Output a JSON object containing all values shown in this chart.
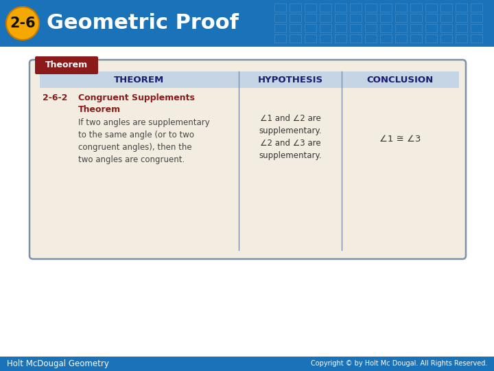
{
  "title": "Geometric Proof",
  "badge_text": "2-6",
  "bg_color": "#ffffff",
  "header_bg": "#1a72b8",
  "badge_bg": "#f5a800",
  "badge_outline": "#c87800",
  "theorem_label_bg": "#8b1a1a",
  "theorem_label_text": "Theorem",
  "table_outer_bg": "#f2ede0",
  "table_header_bg": "#c5d5e5",
  "table_border_color": "#7a90a8",
  "col_header_color": "#1a1a6e",
  "row_number_color": "#8b1a1a",
  "row_title_color": "#8b1a1a",
  "row_body_color": "#444444",
  "footer_bg": "#1a72b8",
  "footer_text": "Holt McDougal Geometry",
  "footer_right": "Copyright © by Holt Mc Dougal. All Rights Reserved.",
  "theorem_num": "2-6-2",
  "theorem_title": "Congruent Supplements\nTheorem",
  "theorem_body": "If two angles are supplementary\nto the same angle (or to two\ncongruent angles), then the\ntwo angles are congruent.",
  "hypothesis_text": "∠1 and ∠2 are\nsupplementary.\n∠2 and ∠3 are\nsupplementary.",
  "conclusion_text": "∠1 ≅ ∠3"
}
